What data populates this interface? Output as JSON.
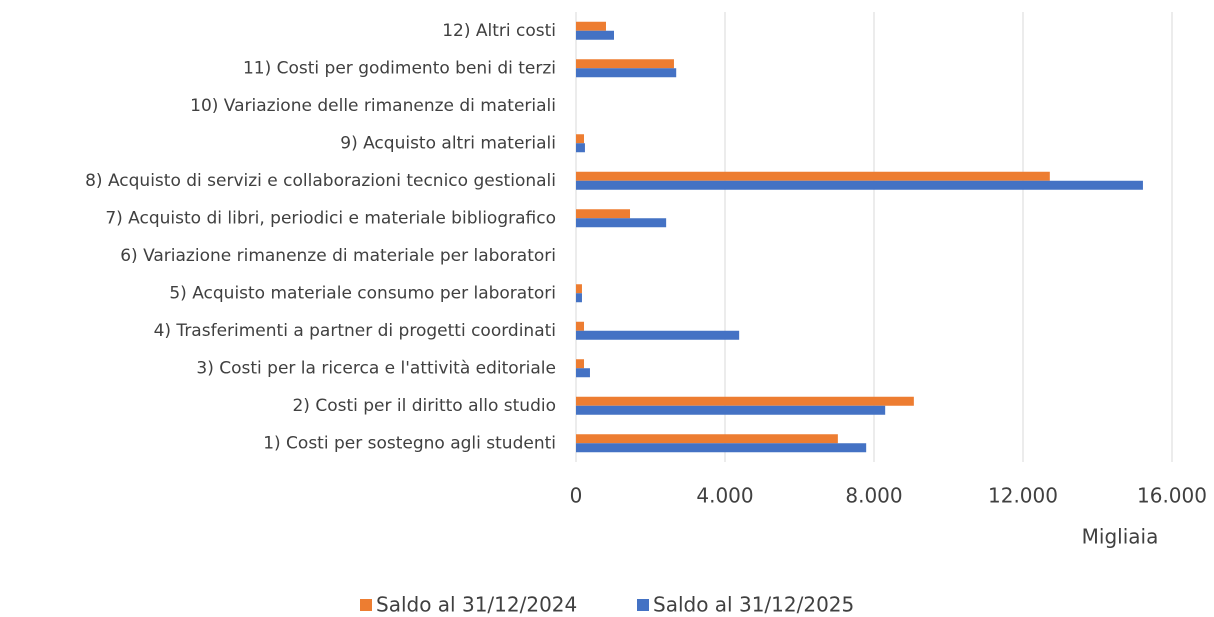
{
  "chart_data": {
    "type": "barh",
    "categories": [
      "1) Costi per sostegno agli studenti",
      "2) Costi per il diritto allo studio",
      "3) Costi per la ricerca e l'attività editoriale",
      "4) Trasferimenti a partner di progetti coordinati",
      "5) Acquisto materiale consumo per laboratori",
      "6) Variazione rimanenze di materiale per laboratori",
      "7) Acquisto di libri, periodici e materiale bibliografico",
      "8) Acquisto di servizi e collaborazioni tecnico gestionali",
      "9) Acquisto altri materiali",
      "10) Variazione delle rimanenze di materiali",
      "11) Costi per godimento beni di terzi",
      "12) Altri costi"
    ],
    "series": [
      {
        "name": "Saldo al 31/12/2024",
        "color": "#ed7d31",
        "values": [
          7030,
          9070,
          215,
          215,
          160,
          0,
          1450,
          12720,
          215,
          0,
          2630,
          805
        ]
      },
      {
        "name": "Saldo al 31/12/2025",
        "color": "#4472c4",
        "values": [
          7790,
          8300,
          375,
          4380,
          160,
          0,
          2420,
          15220,
          240,
          0,
          2690,
          1020
        ]
      }
    ],
    "x_label": "Migliaia",
    "xlim": [
      0,
      16000
    ],
    "xticks": [
      0,
      {
        "value": 4000,
        "label": "4.000"
      },
      {
        "value": 8000,
        "label": "8.000"
      },
      {
        "value": 12000,
        "label": "12.000"
      },
      {
        "value": 16000,
        "label": "16.000"
      }
    ],
    "grid": true,
    "legend": "bottom"
  }
}
